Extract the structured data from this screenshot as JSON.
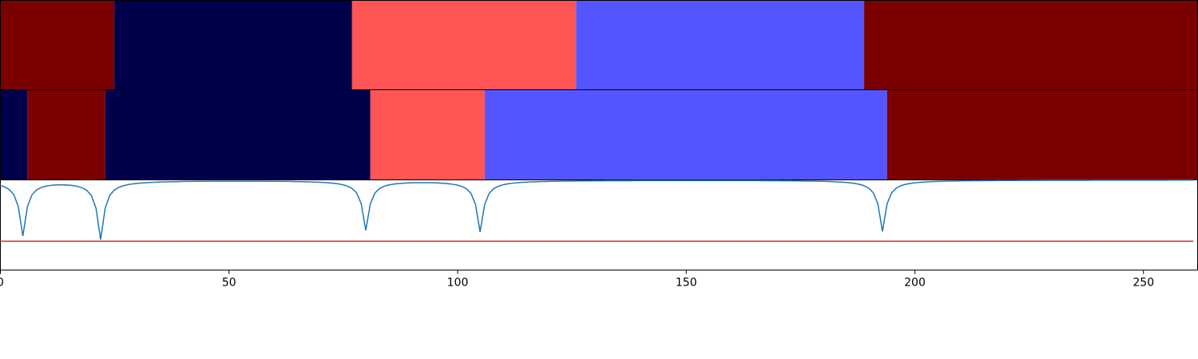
{
  "chart_data": {
    "type": "segmentation",
    "x_range": [
      0,
      262
    ],
    "x_ticks": [
      0,
      50,
      100,
      150,
      200,
      250
    ],
    "x_tick_labels": [
      "0",
      "50",
      "100",
      "150",
      "200",
      "250"
    ],
    "grid": false,
    "legend": "none",
    "colors": {
      "dark_red": "#7b0000",
      "navy": "#00004a",
      "salmon": "#ff5555",
      "blue": "#5555ff",
      "line": "#1f77b4",
      "threshold": "#d62728"
    },
    "band_rows": [
      {
        "segments": [
          {
            "start": 0,
            "end": 25,
            "color": "dark_red"
          },
          {
            "start": 25,
            "end": 77,
            "color": "navy"
          },
          {
            "start": 77,
            "end": 126,
            "color": "salmon"
          },
          {
            "start": 126,
            "end": 189,
            "color": "blue"
          },
          {
            "start": 189,
            "end": 262,
            "color": "dark_red"
          }
        ]
      },
      {
        "segments": [
          {
            "start": 0,
            "end": 6,
            "color": "navy"
          },
          {
            "start": 6,
            "end": 23,
            "color": "dark_red"
          },
          {
            "start": 23,
            "end": 81,
            "color": "navy"
          },
          {
            "start": 81,
            "end": 106,
            "color": "salmon"
          },
          {
            "start": 106,
            "end": 194,
            "color": "blue"
          },
          {
            "start": 194,
            "end": 262,
            "color": "dark_red"
          }
        ]
      }
    ],
    "signal": {
      "y_range": [
        0,
        1
      ],
      "baseline": 1.0,
      "x_end": 261,
      "dips": [
        {
          "x": 5,
          "depth": 0.39
        },
        {
          "x": 22,
          "depth": 0.35
        },
        {
          "x": 80,
          "depth": 0.45
        },
        {
          "x": 105,
          "depth": 0.43
        },
        {
          "x": 193,
          "depth": 0.43
        }
      ],
      "start_value": 0.94,
      "threshold": 0.32
    }
  }
}
